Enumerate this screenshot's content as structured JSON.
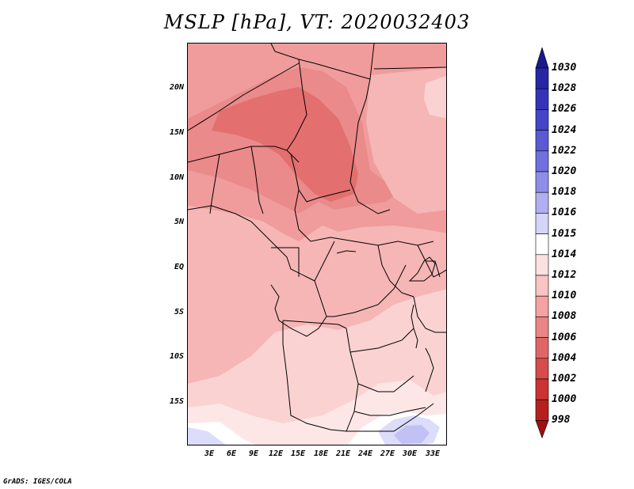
{
  "title": "MSLP [hPa], VT: 2020032403",
  "credit": "GrADS: IGES/COLA",
  "lat_labels": [
    "20N",
    "15N",
    "10N",
    "5N",
    "EQ",
    "5S",
    "10S",
    "15S"
  ],
  "lon_labels": [
    "3E",
    "6E",
    "9E",
    "12E",
    "15E",
    "18E",
    "21E",
    "24E",
    "27E",
    "30E",
    "33E"
  ],
  "colorbar": {
    "levels": [
      "1030",
      "1028",
      "1026",
      "1024",
      "1022",
      "1020",
      "1018",
      "1016",
      "1015",
      "1014",
      "1012",
      "1010",
      "1008",
      "1006",
      "1004",
      "1002",
      "1000",
      "998"
    ],
    "colors": [
      "#1a1a8c",
      "#2626a6",
      "#3434b8",
      "#4545c8",
      "#5a5ad4",
      "#7070de",
      "#8e8ee8",
      "#b0b0f0",
      "#d4d4f8",
      "#ffffff",
      "#fde0e0",
      "#f9c4c4",
      "#f3a3a3",
      "#ea8585",
      "#e06666",
      "#d64b4b",
      "#cc3333",
      "#b82020",
      "#a01010"
    ]
  },
  "map_colors": {
    "p1004": "#e36f6f",
    "p1006": "#ea8a8a",
    "p1008": "#f09c9c",
    "p1010": "#f6b6b6",
    "p1012": "#fbd2d2",
    "p1014": "#fde6e6",
    "p1015": "#ffffff",
    "p1016": "#dcdcfb",
    "p1018": "#c1c1f5"
  }
}
